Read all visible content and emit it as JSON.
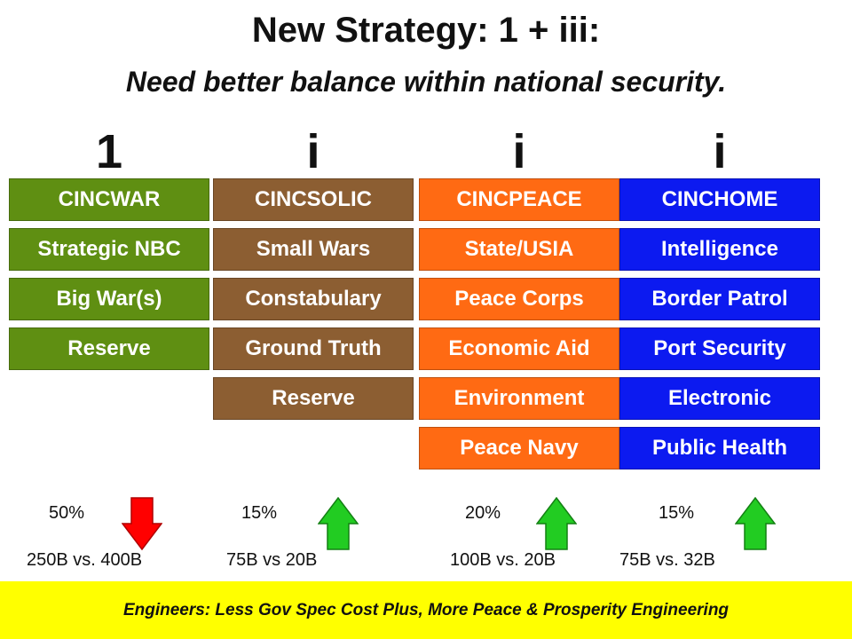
{
  "title": "New Strategy: 1 + iii:",
  "subtitle": "Need better balance within national security.",
  "columns": [
    {
      "heading": "1",
      "color": "#5f8f12",
      "items": [
        "CINCWAR",
        "Strategic NBC",
        "Big War(s)",
        "Reserve"
      ],
      "percent": "50%",
      "trend": "down",
      "trend_icon": "red-down-arrow-icon",
      "budget": "250B vs. 400B"
    },
    {
      "heading": "i",
      "color": "#8c5e32",
      "items": [
        "CINCSOLIC",
        "Small Wars",
        "Constabulary",
        "Ground Truth",
        "Reserve"
      ],
      "percent": "15%",
      "trend": "up",
      "trend_icon": "green-up-arrow-icon",
      "budget": "75B vs 20B"
    },
    {
      "heading": "i",
      "color": "#ff6a13",
      "items": [
        "CINCPEACE",
        "State/USIA",
        "Peace Corps",
        "Economic Aid",
        "Environment",
        "Peace Navy"
      ],
      "percent": "20%",
      "trend": "up",
      "trend_icon": "green-up-arrow-icon",
      "budget": "100B vs. 20B"
    },
    {
      "heading": "i",
      "color": "#0c1af0",
      "items": [
        "CINCHOME",
        "Intelligence",
        "Border Patrol",
        "Port Security",
        "Electronic",
        "Public Health"
      ],
      "percent": "15%",
      "trend": "up",
      "trend_icon": "green-up-arrow-icon",
      "budget": "75B vs. 32B"
    }
  ],
  "footer": "Engineers: Less Gov Spec Cost Plus, More Peace & Prosperity Engineering"
}
